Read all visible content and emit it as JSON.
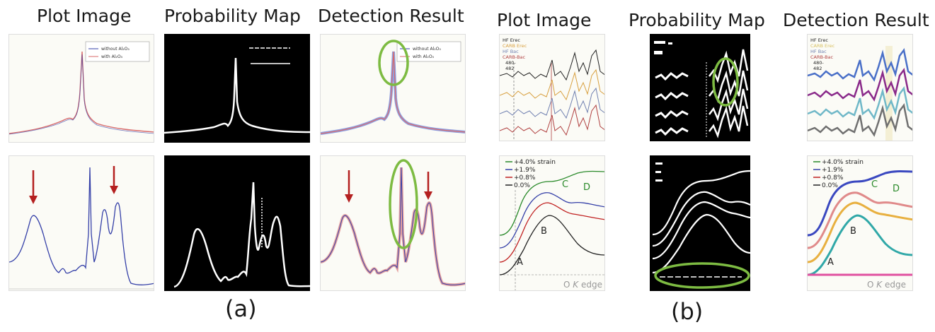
{
  "headers": {
    "a_plot": "Plot Image",
    "a_prob": "Probability Map",
    "a_det": "Detection Result",
    "b_plot": "Plot Image",
    "b_prob": "Probability Map",
    "b_det": "Detection Result"
  },
  "sublabels": {
    "a": "(a)",
    "b": "(b)"
  },
  "legend_a": {
    "line1": "without Al",
    "line1_sub": "2",
    "line1_tail": "O",
    "line1_sub2": "3",
    "line2": "with Al",
    "line2_sub": "2",
    "line2_tail": "O",
    "line2_sub2": "3"
  },
  "legend_b_top": [
    "HF Erec",
    "CARB Erec",
    "HF Bac",
    "CARB-Bac",
    "480-",
    "482"
  ],
  "legend_b_bottom": [
    "+4.0% strain",
    "+1.9%",
    "+0.8%",
    "0.0%"
  ],
  "peak_labels": {
    "A": "A",
    "B": "B",
    "C": "C",
    "D": "D"
  },
  "edge_label": {
    "prefix": "O ",
    "italic": "K",
    "suffix": " edge"
  },
  "colors": {
    "highlight": "#7dbb42",
    "arrow": "#b42020",
    "blue_curve": "#3540a8",
    "red_curve": "#d86a6a",
    "green_curve": "#2a8a2a",
    "dark_red_curve": "#c02020"
  }
}
